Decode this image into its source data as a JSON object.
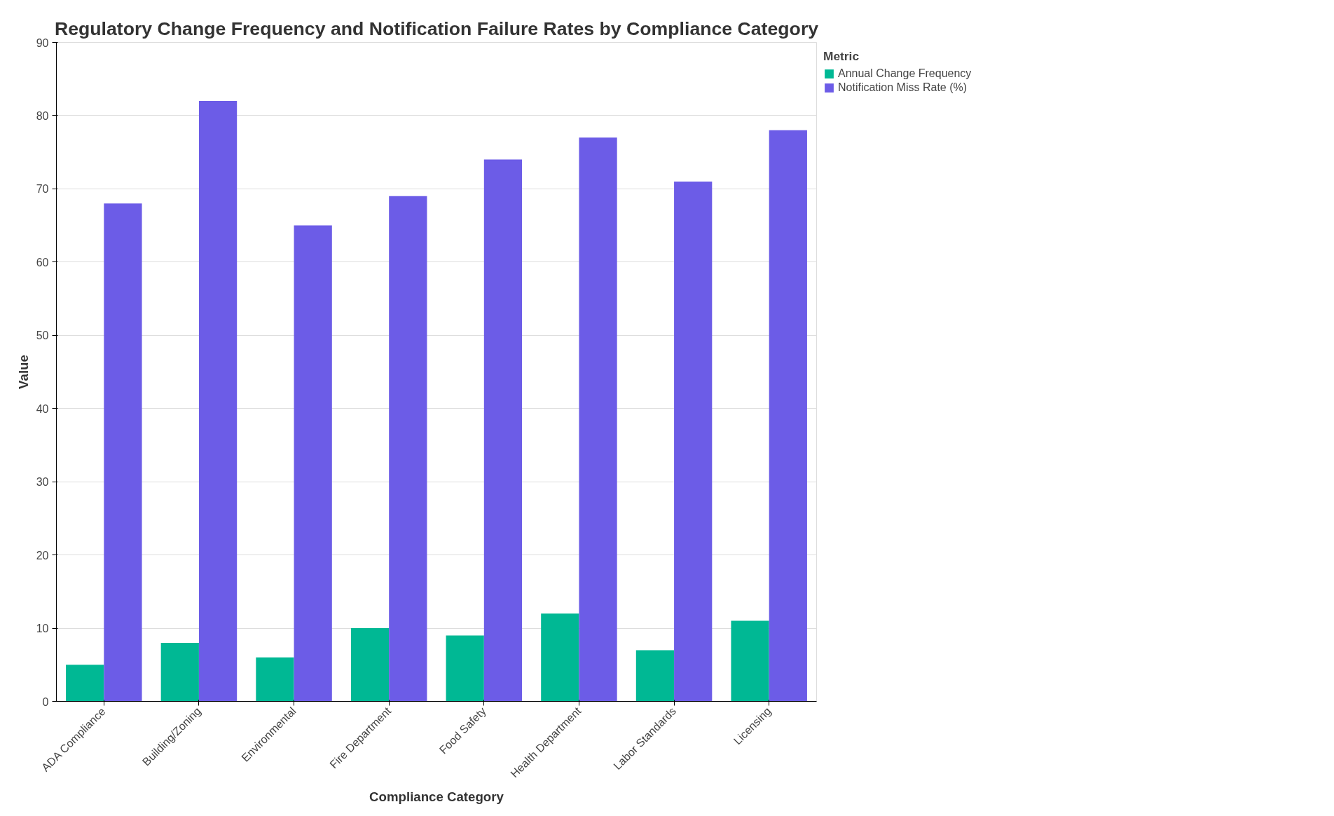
{
  "chart_data": {
    "type": "bar",
    "title": "Regulatory Change Frequency and Notification Failure Rates by Compliance Category",
    "xlabel": "Compliance Category",
    "ylabel": "Value",
    "legend_title": "Metric",
    "categories": [
      "ADA Compliance",
      "Building/Zoning",
      "Environmental",
      "Fire Department",
      "Food Safety",
      "Health Department",
      "Labor Standards",
      "Licensing"
    ],
    "series": [
      {
        "name": "Annual Change Frequency",
        "color": "#00b894",
        "values": [
          5,
          8,
          6,
          10,
          9,
          12,
          7,
          11
        ]
      },
      {
        "name": "Notification Miss Rate (%)",
        "color": "#6c5ce7",
        "values": [
          68,
          82,
          65,
          69,
          74,
          77,
          71,
          78
        ]
      }
    ],
    "ylim": [
      0,
      90
    ],
    "yticks": [
      0,
      10,
      20,
      30,
      40,
      50,
      60,
      70,
      80,
      90
    ],
    "grid": "y",
    "legend": "top right"
  }
}
